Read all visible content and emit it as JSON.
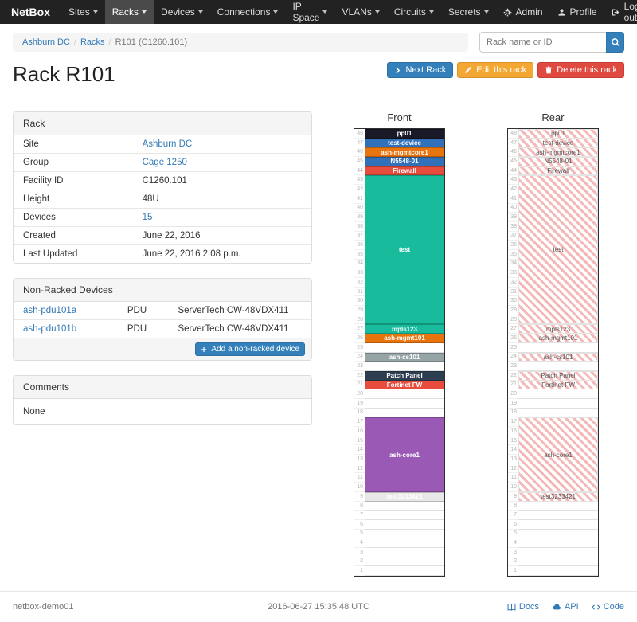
{
  "navbar": {
    "brand": "NetBox",
    "menu": [
      {
        "label": "Sites",
        "active": false
      },
      {
        "label": "Racks",
        "active": true
      },
      {
        "label": "Devices",
        "active": false
      },
      {
        "label": "Connections",
        "active": false
      },
      {
        "label": "IP Space",
        "active": false
      },
      {
        "label": "VLANs",
        "active": false
      },
      {
        "label": "Circuits",
        "active": false
      },
      {
        "label": "Secrets",
        "active": false
      }
    ],
    "admin_label": "Admin",
    "profile_label": "Profile",
    "logout_label": "Log out"
  },
  "breadcrumb": {
    "site": "Ashburn DC",
    "section": "Racks",
    "current": "R101 (C1260.101)"
  },
  "search": {
    "placeholder": "Rack name or ID"
  },
  "actions": {
    "next_rack": "Next Rack",
    "edit": "Edit this rack",
    "delete": "Delete this rack"
  },
  "page": {
    "title": "Rack R101"
  },
  "rack_info": {
    "title": "Rack",
    "rows": [
      {
        "label": "Site",
        "value": "Ashburn DC",
        "link": true
      },
      {
        "label": "Group",
        "value": "Cage 1250",
        "link": true
      },
      {
        "label": "Facility ID",
        "value": "C1260.101",
        "link": false
      },
      {
        "label": "Height",
        "value": "48U",
        "link": false
      },
      {
        "label": "Devices",
        "value": "15",
        "link": true
      },
      {
        "label": "Created",
        "value": "June 22, 2016",
        "link": false
      },
      {
        "label": "Last Updated",
        "value": "June 22, 2016 2:08 p.m.",
        "link": false
      }
    ]
  },
  "non_racked": {
    "title": "Non-Racked Devices",
    "rows": [
      {
        "name": "ash-pdu101a",
        "role": "PDU",
        "type": "ServerTech CW-48VDX411"
      },
      {
        "name": "ash-pdu101b",
        "role": "PDU",
        "type": "ServerTech CW-48VDX411"
      }
    ],
    "add_button": "Add a non-racked device"
  },
  "comments": {
    "title": "Comments",
    "body": "None"
  },
  "elevation": {
    "front_title": "Front",
    "rear_title": "Rear",
    "units_total": 48,
    "rear_hatch_color": "#f5b8b8",
    "devices": [
      {
        "name": "pp01",
        "top_u": 48,
        "height": 1,
        "color": "#191927",
        "text_color": "#ffffff"
      },
      {
        "name": "test-device",
        "top_u": 47,
        "height": 1,
        "color": "#3071b9",
        "text_color": "#ffffff"
      },
      {
        "name": "ash-mgmtcore1",
        "top_u": 46,
        "height": 1,
        "color": "#e8740e",
        "text_color": "#ffffff"
      },
      {
        "name": "N5548-01",
        "top_u": 45,
        "height": 1,
        "color": "#3071b9",
        "text_color": "#ffffff"
      },
      {
        "name": "Firewall",
        "top_u": 44,
        "height": 1,
        "color": "#e74c3c",
        "text_color": "#ffffff"
      },
      {
        "name": "test",
        "top_u": 43,
        "height": 16,
        "color": "#18bc9c",
        "text_color": "#ffffff"
      },
      {
        "name": "mpls123",
        "top_u": 27,
        "height": 1,
        "color": "#18bc9c",
        "text_color": "#ffffff"
      },
      {
        "name": "ash-mgmt101",
        "top_u": 26,
        "height": 1,
        "color": "#e8740e",
        "text_color": "#ffffff"
      },
      {
        "name": "ash-cs101",
        "top_u": 24,
        "height": 1,
        "color": "#95a5a6",
        "text_color": "#ffffff"
      },
      {
        "name": "Patch Panel",
        "top_u": 22,
        "height": 1,
        "color": "#2c3e50",
        "text_color": "#ffffff"
      },
      {
        "name": "Fortinet FW",
        "top_u": 21,
        "height": 1,
        "color": "#e74c3c",
        "text_color": "#ffffff"
      },
      {
        "name": "ash-core1",
        "top_u": 17,
        "height": 8,
        "color": "#9b59b6",
        "text_color": "#ffffff"
      },
      {
        "name": "test3233421",
        "top_u": 9,
        "height": 1,
        "color": "#e8e8e8",
        "text_color": "#ffffff"
      }
    ]
  },
  "footer": {
    "hostname": "netbox-demo01",
    "timestamp": "2016-06-27 15:35:48 UTC",
    "docs": "Docs",
    "api": "API",
    "code": "Code"
  }
}
